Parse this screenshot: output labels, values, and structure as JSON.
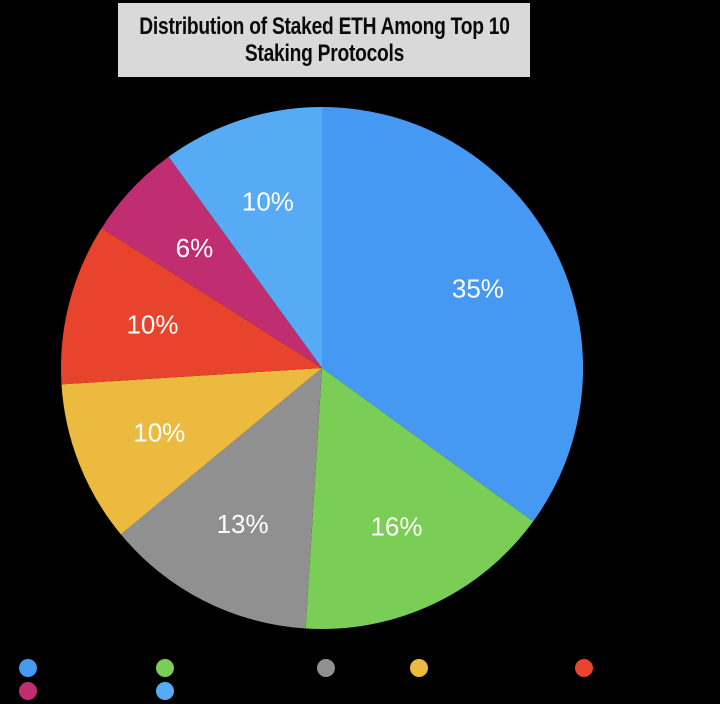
{
  "background": "#000000",
  "title": {
    "line1": "Distribution of Staked ETH Among Top 10",
    "line2": "Staking Protocols",
    "box_color": "#d9d9d9",
    "text_color": "#0a0a0a"
  },
  "chart_data": {
    "type": "pie",
    "title": "Distribution of Staked ETH Among Top 10 Staking Protocols",
    "direction": "clockwise",
    "start_angle_deg": 0,
    "label_color": "#ffffff",
    "slices": [
      {
        "label": "35%",
        "value": 35,
        "color": "#4699f3"
      },
      {
        "label": "16%",
        "value": 16,
        "color": "#7ace55"
      },
      {
        "label": "13%",
        "value": 13,
        "color": "#909090"
      },
      {
        "label": "10%",
        "value": 10,
        "color": "#ecba3f"
      },
      {
        "label": "10%",
        "value": 10,
        "color": "#e8432c"
      },
      {
        "label": "6%",
        "value": 6,
        "color": "#c02e71"
      },
      {
        "label": "10%",
        "value": 10,
        "color": "#57abf4"
      }
    ],
    "legend": {
      "position": "bottom",
      "rows": 2,
      "dots": [
        {
          "color": "#4699f3",
          "label": ""
        },
        {
          "color": "#7ace55",
          "label": ""
        },
        {
          "color": "#909090",
          "label": ""
        },
        {
          "color": "#ecba3f",
          "label": ""
        },
        {
          "color": "#e8432c",
          "label": ""
        },
        {
          "color": "#c02e71",
          "label": ""
        },
        {
          "color": "#57abf4",
          "label": ""
        }
      ]
    }
  }
}
